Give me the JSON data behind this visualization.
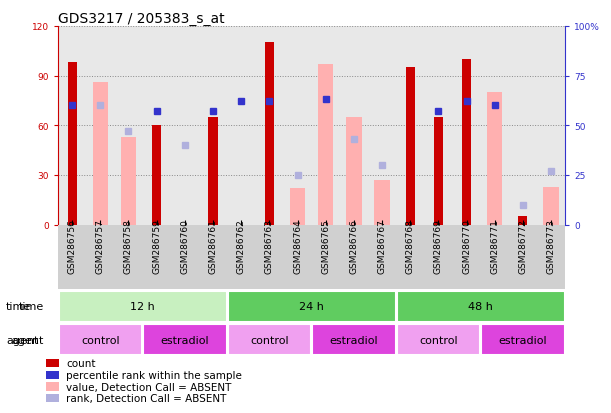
{
  "title": "GDS3217 / 205383_s_at",
  "samples": [
    "GSM286756",
    "GSM286757",
    "GSM286758",
    "GSM286759",
    "GSM286760",
    "GSM286761",
    "GSM286762",
    "GSM286763",
    "GSM286764",
    "GSM286765",
    "GSM286766",
    "GSM286767",
    "GSM286768",
    "GSM286769",
    "GSM286770",
    "GSM286771",
    "GSM286772",
    "GSM286773"
  ],
  "count_values": [
    98,
    0,
    0,
    60,
    0,
    65,
    0,
    110,
    0,
    0,
    0,
    0,
    95,
    65,
    100,
    0,
    5,
    0
  ],
  "percentile_values": [
    60,
    0,
    0,
    57,
    0,
    57,
    62,
    62,
    0,
    63,
    0,
    0,
    0,
    57,
    62,
    60,
    0,
    0
  ],
  "absent_value_values": [
    0,
    86,
    53,
    0,
    0,
    0,
    0,
    0,
    22,
    97,
    65,
    27,
    0,
    0,
    0,
    80,
    0,
    23
  ],
  "absent_rank_values": [
    0,
    60,
    47,
    0,
    40,
    0,
    0,
    0,
    25,
    0,
    43,
    30,
    0,
    0,
    0,
    0,
    10,
    27
  ],
  "time_groups": [
    {
      "label": "12 h",
      "start": 0,
      "end": 6
    },
    {
      "label": "24 h",
      "start": 6,
      "end": 12
    },
    {
      "label": "48 h",
      "start": 12,
      "end": 18
    }
  ],
  "time_colors": [
    "#c8f0c0",
    "#60cc60",
    "#60cc60"
  ],
  "agent_groups": [
    {
      "label": "control",
      "start": 0,
      "end": 3
    },
    {
      "label": "estradiol",
      "start": 3,
      "end": 6
    },
    {
      "label": "control",
      "start": 6,
      "end": 9
    },
    {
      "label": "estradiol",
      "start": 9,
      "end": 12
    },
    {
      "label": "control",
      "start": 12,
      "end": 15
    },
    {
      "label": "estradiol",
      "start": 15,
      "end": 18
    }
  ],
  "agent_color_control": "#f0a0f0",
  "agent_color_estradiol": "#dd44dd",
  "ylim_left": [
    0,
    120
  ],
  "ylim_right": [
    0,
    100
  ],
  "yticks_left": [
    0,
    30,
    60,
    90,
    120
  ],
  "yticks_right": [
    0,
    25,
    50,
    75,
    100
  ],
  "ytick_labels_right": [
    "0",
    "25",
    "50",
    "75",
    "100%"
  ],
  "count_color": "#cc0000",
  "percentile_color": "#3333cc",
  "absent_value_color": "#ffb0b0",
  "absent_rank_color": "#b0b0dd",
  "title_fontsize": 10,
  "tick_fontsize": 6.5,
  "label_fontsize": 8,
  "legend_fontsize": 7.5,
  "left_axis_color": "#cc0000",
  "right_axis_color": "#3333cc",
  "plot_bg_color": "#e8e8e8",
  "xticklabel_bg": "#d0d0d0"
}
